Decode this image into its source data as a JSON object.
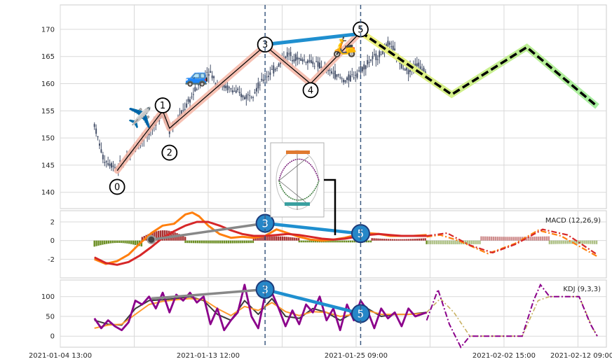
{
  "chart_data": [
    {
      "type": "candlestick",
      "panel": "price",
      "ylim": [
        137,
        174.5
      ],
      "yticks": [
        140,
        145,
        150,
        155,
        160,
        165,
        170
      ],
      "xlabels": [
        "2021-01-04 13:00",
        "2021-01-13 12:00",
        "2021-01-25 09:00",
        "2021-02-02 15:00",
        "2021-02-12 09:00"
      ],
      "grid": true,
      "price_path": [
        {
          "x": 0.0,
          "y": 152.5
        },
        {
          "x": 0.4,
          "y": 146
        },
        {
          "x": 1.0,
          "y": 144.5
        },
        {
          "x": 1.5,
          "y": 146.5
        },
        {
          "x": 2.0,
          "y": 149
        },
        {
          "x": 2.6,
          "y": 152
        },
        {
          "x": 3.0,
          "y": 155
        },
        {
          "x": 3.3,
          "y": 151.5
        },
        {
          "x": 3.6,
          "y": 153
        },
        {
          "x": 4.2,
          "y": 157
        },
        {
          "x": 4.6,
          "y": 160
        },
        {
          "x": 5.0,
          "y": 162.5
        },
        {
          "x": 5.4,
          "y": 160
        },
        {
          "x": 6.0,
          "y": 159
        },
        {
          "x": 6.6,
          "y": 157.5
        },
        {
          "x": 7.0,
          "y": 158.5
        },
        {
          "x": 7.6,
          "y": 161.5
        },
        {
          "x": 8.0,
          "y": 163
        },
        {
          "x": 8.5,
          "y": 165.5
        },
        {
          "x": 9.0,
          "y": 164.5
        },
        {
          "x": 9.6,
          "y": 164
        },
        {
          "x": 10.0,
          "y": 163
        },
        {
          "x": 10.5,
          "y": 162
        },
        {
          "x": 11.0,
          "y": 160.5
        },
        {
          "x": 11.4,
          "y": 161.5
        },
        {
          "x": 11.8,
          "y": 163
        },
        {
          "x": 12.2,
          "y": 164.5
        },
        {
          "x": 12.6,
          "y": 165.5
        },
        {
          "x": 13.0,
          "y": 167.5
        },
        {
          "x": 13.4,
          "y": 164
        },
        {
          "x": 13.8,
          "y": 162.5
        },
        {
          "x": 14.2,
          "y": 163.5
        },
        {
          "x": 14.6,
          "y": 162.5
        }
      ],
      "pattern_points": [
        {
          "label": "0",
          "x": 1.0,
          "y": 144.0
        },
        {
          "label": "1",
          "x": 3.0,
          "y": 155.0
        },
        {
          "label": "2",
          "x": 3.3,
          "y": 151.8
        },
        {
          "label": "3",
          "x": 7.5,
          "y": 167.0
        },
        {
          "label": "4",
          "x": 9.5,
          "y": 160.0
        },
        {
          "label": "5",
          "x": 11.7,
          "y": 169.5
        }
      ],
      "label_positions": [
        {
          "label": "0",
          "x": 1.0,
          "y": 141.0
        },
        {
          "label": "1",
          "x": 3.0,
          "y": 156.0
        },
        {
          "label": "2",
          "x": 3.3,
          "y": 147.3
        },
        {
          "label": "3",
          "x": 7.5,
          "y": 167.2
        },
        {
          "label": "4",
          "x": 9.5,
          "y": 158.8
        },
        {
          "label": "5",
          "x": 11.7,
          "y": 170.0
        }
      ],
      "trend_line": {
        "from": {
          "x": 7.5,
          "y": 167.2
        },
        "to": {
          "x": 11.7,
          "y": 169.2
        }
      },
      "projection": [
        {
          "x": 11.7,
          "y": 169.5
        },
        {
          "x": 15.7,
          "y": 158.0
        },
        {
          "x": 19.0,
          "y": 166.7
        },
        {
          "x": 22.1,
          "y": 155.8
        }
      ],
      "vertical_markers": [
        7.5,
        11.7
      ],
      "icons": [
        {
          "name": "airplane",
          "glyph": "✈️",
          "x": 2.0,
          "y": 153.8
        },
        {
          "name": "car",
          "glyph": "🚙",
          "x": 4.5,
          "y": 161.5
        },
        {
          "name": "scooter",
          "glyph": "🛵",
          "x": 11.0,
          "y": 166.9
        }
      ]
    },
    {
      "type": "macd",
      "panel": "macd",
      "title": "MACD (12,26,9)",
      "ylim": [
        -4,
        3.2
      ],
      "yticks": [
        -2,
        0,
        2
      ],
      "markers": [
        {
          "label": "3",
          "x": 7.5,
          "y": 1.85
        },
        {
          "label": "5",
          "x": 11.7,
          "y": 0.75
        }
      ],
      "start_marker": {
        "x": 2.5,
        "y": 0.1
      },
      "macd_line": [
        {
          "x": 0.0,
          "y": -2.0
        },
        {
          "x": 0.5,
          "y": -2.5
        },
        {
          "x": 1.0,
          "y": -2.2
        },
        {
          "x": 1.5,
          "y": -1.5
        },
        {
          "x": 2.0,
          "y": -0.3
        },
        {
          "x": 2.5,
          "y": 0.8
        },
        {
          "x": 3.0,
          "y": 1.6
        },
        {
          "x": 3.5,
          "y": 1.8
        },
        {
          "x": 4.0,
          "y": 2.8
        },
        {
          "x": 4.3,
          "y": 3.0
        },
        {
          "x": 4.6,
          "y": 2.6
        },
        {
          "x": 5.0,
          "y": 1.6
        },
        {
          "x": 5.5,
          "y": 0.7
        },
        {
          "x": 6.0,
          "y": 0.3
        },
        {
          "x": 6.5,
          "y": 0.4
        },
        {
          "x": 7.0,
          "y": 0.3
        },
        {
          "x": 7.5,
          "y": 0.5
        },
        {
          "x": 8.0,
          "y": 1.2
        },
        {
          "x": 8.5,
          "y": 0.8
        },
        {
          "x": 9.0,
          "y": 0.4
        },
        {
          "x": 9.5,
          "y": 0.1
        },
        {
          "x": 10.0,
          "y": 0.0
        },
        {
          "x": 10.5,
          "y": 0.1
        },
        {
          "x": 11.0,
          "y": 0.3
        },
        {
          "x": 11.5,
          "y": 0.6
        },
        {
          "x": 12.0,
          "y": 0.8
        },
        {
          "x": 12.5,
          "y": 0.7
        },
        {
          "x": 13.0,
          "y": 0.5
        },
        {
          "x": 13.5,
          "y": 0.5
        },
        {
          "x": 14.0,
          "y": 0.5
        },
        {
          "x": 14.6,
          "y": 0.6
        }
      ],
      "signal_line": [
        {
          "x": 0.0,
          "y": -1.8
        },
        {
          "x": 0.5,
          "y": -2.4
        },
        {
          "x": 1.0,
          "y": -2.6
        },
        {
          "x": 1.5,
          "y": -2.3
        },
        {
          "x": 2.0,
          "y": -1.6
        },
        {
          "x": 2.5,
          "y": -0.7
        },
        {
          "x": 3.0,
          "y": 0.3
        },
        {
          "x": 3.5,
          "y": 1.0
        },
        {
          "x": 4.0,
          "y": 1.6
        },
        {
          "x": 4.5,
          "y": 2.0
        },
        {
          "x": 5.0,
          "y": 2.0
        },
        {
          "x": 5.5,
          "y": 1.6
        },
        {
          "x": 6.0,
          "y": 1.1
        },
        {
          "x": 6.5,
          "y": 0.7
        },
        {
          "x": 7.0,
          "y": 0.5
        },
        {
          "x": 7.5,
          "y": 0.5
        },
        {
          "x": 8.0,
          "y": 0.6
        },
        {
          "x": 8.5,
          "y": 0.7
        },
        {
          "x": 9.0,
          "y": 0.6
        },
        {
          "x": 9.5,
          "y": 0.4
        },
        {
          "x": 10.0,
          "y": 0.2
        },
        {
          "x": 10.5,
          "y": 0.1
        },
        {
          "x": 11.0,
          "y": 0.2
        },
        {
          "x": 11.5,
          "y": 0.4
        },
        {
          "x": 12.0,
          "y": 0.6
        },
        {
          "x": 12.5,
          "y": 0.7
        },
        {
          "x": 13.0,
          "y": 0.6
        },
        {
          "x": 13.5,
          "y": 0.5
        },
        {
          "x": 14.0,
          "y": 0.5
        },
        {
          "x": 14.6,
          "y": 0.5
        }
      ],
      "hist_segments": [
        {
          "x0": 0.0,
          "x1": 2.1,
          "v0": -0.5,
          "v1": -0.25
        },
        {
          "x0": 2.1,
          "x1": 4.0,
          "v0": 0.3,
          "v1": 1.1
        },
        {
          "x0": 4.0,
          "x1": 7.0,
          "v0": -0.2,
          "v1": -0.3
        },
        {
          "x0": 7.0,
          "x1": 9.0,
          "v0": 0.2,
          "v1": 0.45
        },
        {
          "x0": 9.0,
          "x1": 12.2,
          "v0": -0.15,
          "v1": -0.2
        },
        {
          "x0": 12.2,
          "x1": 14.6,
          "v0": 0.2,
          "v1": 0.15
        },
        {
          "x0": 14.6,
          "x1": 17.0,
          "v0": -0.3,
          "v1": -0.4
        },
        {
          "x0": 17.0,
          "x1": 20.0,
          "v0": 0.35,
          "v1": 0.4
        },
        {
          "x0": 20.0,
          "x1": 22.1,
          "v0": -0.3,
          "v1": -0.35
        }
      ],
      "projection_orange": [
        {
          "x": 14.6,
          "y": 0.4
        },
        {
          "x": 15.2,
          "y": 0.6
        },
        {
          "x": 16.0,
          "y": 0.0
        },
        {
          "x": 17.3,
          "y": -1.4
        },
        {
          "x": 18.5,
          "y": -0.3
        },
        {
          "x": 19.5,
          "y": 1.1
        },
        {
          "x": 20.5,
          "y": 0.5
        },
        {
          "x": 22.1,
          "y": -1.7
        }
      ],
      "projection_red": [
        {
          "x": 14.6,
          "y": 0.5
        },
        {
          "x": 15.5,
          "y": 0.8
        },
        {
          "x": 16.5,
          "y": -0.5
        },
        {
          "x": 17.5,
          "y": -1.3
        },
        {
          "x": 18.5,
          "y": -0.4
        },
        {
          "x": 19.7,
          "y": 1.2
        },
        {
          "x": 20.8,
          "y": 0.6
        },
        {
          "x": 22.1,
          "y": -1.5
        }
      ]
    },
    {
      "type": "kdj",
      "panel": "kdj",
      "title": "KDJ (9,3,3)",
      "ylim": [
        -28,
        142
      ],
      "yticks": [
        0,
        50,
        100
      ],
      "markers": [
        {
          "label": "3",
          "x": 7.5,
          "y": 118
        },
        {
          "label": "5",
          "x": 11.7,
          "y": 57
        }
      ],
      "j_line": [
        {
          "x": 0.0,
          "y": 45
        },
        {
          "x": 0.3,
          "y": 20
        },
        {
          "x": 0.6,
          "y": 40
        },
        {
          "x": 0.9,
          "y": 25
        },
        {
          "x": 1.2,
          "y": 15
        },
        {
          "x": 1.5,
          "y": 35
        },
        {
          "x": 1.8,
          "y": 90
        },
        {
          "x": 2.1,
          "y": 80
        },
        {
          "x": 2.4,
          "y": 100
        },
        {
          "x": 2.7,
          "y": 70
        },
        {
          "x": 3.0,
          "y": 110
        },
        {
          "x": 3.3,
          "y": 60
        },
        {
          "x": 3.6,
          "y": 105
        },
        {
          "x": 3.9,
          "y": 90
        },
        {
          "x": 4.2,
          "y": 110
        },
        {
          "x": 4.5,
          "y": 85
        },
        {
          "x": 4.8,
          "y": 100
        },
        {
          "x": 5.1,
          "y": 30
        },
        {
          "x": 5.4,
          "y": 70
        },
        {
          "x": 5.7,
          "y": 15
        },
        {
          "x": 6.0,
          "y": 40
        },
        {
          "x": 6.3,
          "y": 60
        },
        {
          "x": 6.6,
          "y": 130
        },
        {
          "x": 6.9,
          "y": 50
        },
        {
          "x": 7.2,
          "y": 20
        },
        {
          "x": 7.5,
          "y": 105
        },
        {
          "x": 7.8,
          "y": 110
        },
        {
          "x": 8.1,
          "y": 70
        },
        {
          "x": 8.4,
          "y": 25
        },
        {
          "x": 8.7,
          "y": 65
        },
        {
          "x": 9.0,
          "y": 30
        },
        {
          "x": 9.3,
          "y": 80
        },
        {
          "x": 9.6,
          "y": 60
        },
        {
          "x": 9.9,
          "y": 100
        },
        {
          "x": 10.2,
          "y": 40
        },
        {
          "x": 10.5,
          "y": 70
        },
        {
          "x": 10.8,
          "y": 15
        },
        {
          "x": 11.1,
          "y": 80
        },
        {
          "x": 11.4,
          "y": 40
        },
        {
          "x": 11.7,
          "y": 90
        },
        {
          "x": 12.0,
          "y": 65
        },
        {
          "x": 12.3,
          "y": 20
        },
        {
          "x": 12.6,
          "y": 70
        },
        {
          "x": 12.9,
          "y": 45
        },
        {
          "x": 13.2,
          "y": 60
        },
        {
          "x": 13.5,
          "y": 25
        },
        {
          "x": 13.8,
          "y": 70
        },
        {
          "x": 14.1,
          "y": 50
        },
        {
          "x": 14.6,
          "y": 60
        }
      ],
      "k_line": [
        {
          "x": 0.0,
          "y": 40
        },
        {
          "x": 0.6,
          "y": 30
        },
        {
          "x": 1.2,
          "y": 28
        },
        {
          "x": 1.8,
          "y": 70
        },
        {
          "x": 2.4,
          "y": 90
        },
        {
          "x": 3.0,
          "y": 92
        },
        {
          "x": 3.6,
          "y": 95
        },
        {
          "x": 4.2,
          "y": 100
        },
        {
          "x": 4.8,
          "y": 90
        },
        {
          "x": 5.4,
          "y": 55
        },
        {
          "x": 6.0,
          "y": 40
        },
        {
          "x": 6.6,
          "y": 90
        },
        {
          "x": 7.2,
          "y": 55
        },
        {
          "x": 7.8,
          "y": 95
        },
        {
          "x": 8.4,
          "y": 50
        },
        {
          "x": 9.0,
          "y": 45
        },
        {
          "x": 9.6,
          "y": 70
        },
        {
          "x": 10.2,
          "y": 60
        },
        {
          "x": 10.8,
          "y": 40
        },
        {
          "x": 11.4,
          "y": 60
        },
        {
          "x": 12.0,
          "y": 70
        },
        {
          "x": 12.6,
          "y": 50
        },
        {
          "x": 13.2,
          "y": 55
        },
        {
          "x": 13.8,
          "y": 55
        },
        {
          "x": 14.6,
          "y": 60
        }
      ],
      "d_line": [
        {
          "x": 0.0,
          "y": 20
        },
        {
          "x": 0.6,
          "y": 28
        },
        {
          "x": 1.2,
          "y": 30
        },
        {
          "x": 1.8,
          "y": 55
        },
        {
          "x": 2.4,
          "y": 80
        },
        {
          "x": 3.0,
          "y": 88
        },
        {
          "x": 3.6,
          "y": 92
        },
        {
          "x": 4.2,
          "y": 95
        },
        {
          "x": 4.8,
          "y": 92
        },
        {
          "x": 5.4,
          "y": 70
        },
        {
          "x": 6.0,
          "y": 52
        },
        {
          "x": 6.6,
          "y": 75
        },
        {
          "x": 7.2,
          "y": 65
        },
        {
          "x": 7.8,
          "y": 85
        },
        {
          "x": 8.4,
          "y": 62
        },
        {
          "x": 9.0,
          "y": 52
        },
        {
          "x": 9.6,
          "y": 62
        },
        {
          "x": 10.2,
          "y": 60
        },
        {
          "x": 10.8,
          "y": 50
        },
        {
          "x": 11.4,
          "y": 55
        },
        {
          "x": 12.0,
          "y": 65
        },
        {
          "x": 12.6,
          "y": 55
        },
        {
          "x": 13.2,
          "y": 55
        },
        {
          "x": 13.8,
          "y": 55
        },
        {
          "x": 14.6,
          "y": 58
        }
      ],
      "projection_j": [
        {
          "x": 14.6,
          "y": 40
        },
        {
          "x": 15.1,
          "y": 118
        },
        {
          "x": 15.6,
          "y": 30
        },
        {
          "x": 16.1,
          "y": -28
        },
        {
          "x": 16.5,
          "y": 0
        },
        {
          "x": 18.8,
          "y": 0
        },
        {
          "x": 19.3,
          "y": 90
        },
        {
          "x": 19.6,
          "y": 130
        },
        {
          "x": 20.0,
          "y": 100
        },
        {
          "x": 21.3,
          "y": 100
        },
        {
          "x": 21.8,
          "y": 30
        },
        {
          "x": 22.1,
          "y": 0
        }
      ],
      "projection_kd": [
        {
          "x": 14.6,
          "y": 60
        },
        {
          "x": 15.2,
          "y": 95
        },
        {
          "x": 15.8,
          "y": 60
        },
        {
          "x": 16.5,
          "y": 0
        },
        {
          "x": 18.8,
          "y": 0
        },
        {
          "x": 19.5,
          "y": 90
        },
        {
          "x": 20.0,
          "y": 100
        },
        {
          "x": 21.3,
          "y": 100
        },
        {
          "x": 21.9,
          "y": 20
        },
        {
          "x": 22.1,
          "y": 0
        }
      ]
    }
  ],
  "colors": {
    "up": "#47526b",
    "down": "#47526b",
    "pattern_fill": "#f4b5a5",
    "pattern_line": "#000000",
    "trend_blue": "#1f8fcf",
    "projection_dash": "#000000",
    "projection_glow_start": "#f0f07a",
    "projection_glow_end": "#a6eea0",
    "marker_navy": "#3d5a80",
    "macd_orange": "#ff7f0e",
    "macd_red": "#d62728",
    "hist_pos": "#a83232",
    "hist_neg": "#6b8e23",
    "kdj_k": "#3a3a3a",
    "kdj_d": "#ff9a2e",
    "kdj_j": "#8b008b",
    "gray_line": "#888888",
    "circle_blue": "#2687c8"
  }
}
